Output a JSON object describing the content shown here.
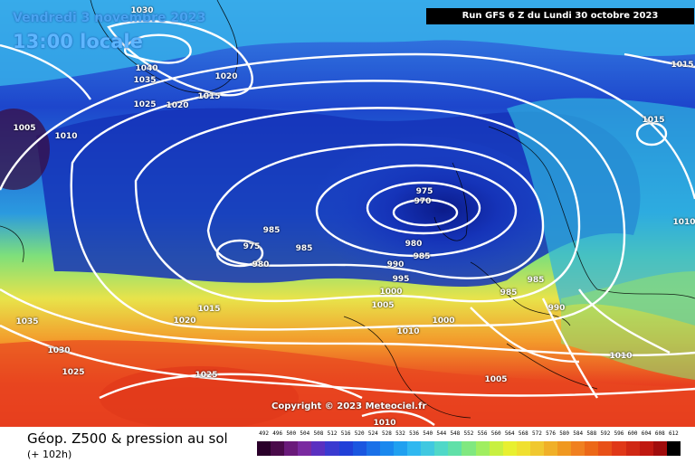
{
  "header": {
    "date": "Vendredi 3 novembre 2023",
    "time": "13:00 locale",
    "run": "Run GFS 6 Z du Lundi 30 octobre 2023",
    "copyright": "Copyright © 2023 Meteociel.fr"
  },
  "footer": {
    "title": "Géop. Z500 & pression au sol",
    "subtitle": "(+ 102h)"
  },
  "isobar_labels": [
    "1030",
    "1040",
    "1035",
    "1025",
    "1020",
    "1020",
    "1015",
    "1005",
    "1010",
    "975",
    "970",
    "985",
    "975",
    "985",
    "980",
    "980",
    "985",
    "990",
    "995",
    "1000",
    "1005",
    "985",
    "985",
    "990",
    "1000",
    "1010",
    "1015",
    "1015",
    "1010",
    "1035",
    "1020",
    "1015",
    "1030",
    "1025",
    "1025",
    "1005",
    "1010",
    "1010"
  ],
  "legend": {
    "labels": [
      "492",
      "496",
      "500",
      "504",
      "508",
      "512",
      "516",
      "520",
      "524",
      "528",
      "532",
      "536",
      "540",
      "544",
      "548",
      "552",
      "556",
      "560",
      "564",
      "568",
      "572",
      "576",
      "580",
      "584",
      "588",
      "592",
      "596",
      "600",
      "604",
      "608",
      "612"
    ],
    "colors": [
      "#2a002a",
      "#4a0a4a",
      "#6a1a7a",
      "#7a2aa0",
      "#5a30c0",
      "#3a3ad0",
      "#2040d8",
      "#1a56e0",
      "#1a70e8",
      "#1a88ee",
      "#20a0f0",
      "#30b8f0",
      "#40c8e0",
      "#50d8c8",
      "#60e0a8",
      "#80e880",
      "#a0ee60",
      "#c8f040",
      "#e8f030",
      "#f0e030",
      "#f0c830",
      "#f0b028",
      "#f09820",
      "#f08020",
      "#ec6818",
      "#e85018",
      "#e03818",
      "#d02814",
      "#c01810",
      "#a00c0c",
      "#000000"
    ]
  }
}
